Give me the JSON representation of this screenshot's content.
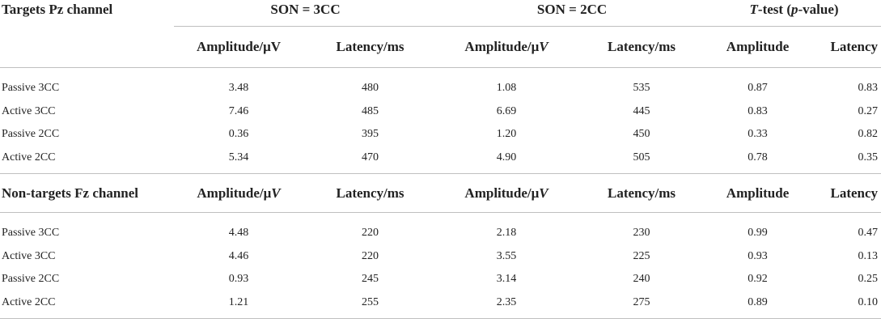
{
  "table": {
    "corner_label": "Targets Pz channel",
    "groups": [
      {
        "label": "SON = 3CC"
      },
      {
        "label": "SON = 2CC"
      },
      {
        "label_italic": "T",
        "label_rest": "-test (",
        "label_italic2": "p",
        "label_end": "-value)"
      }
    ],
    "sub_headers": {
      "amp_3cc_prefix": "Amplitude/μ",
      "amp_3cc_unit": "V",
      "lat_3cc": "Latency/ms",
      "amp_2cc_prefix": "Amplitude/μ",
      "amp_2cc_unit": "V",
      "lat_2cc": "Latency/ms",
      "ttest_amp": "Amplitude",
      "ttest_lat": "Latency"
    },
    "targets_rows": [
      {
        "label": "Passive 3CC",
        "values": [
          "3.48",
          "480",
          "1.08",
          "535",
          "0.87",
          "0.83"
        ]
      },
      {
        "label": "Active 3CC",
        "values": [
          "7.46",
          "485",
          "6.69",
          "445",
          "0.83",
          "0.27"
        ]
      },
      {
        "label": "Passive 2CC",
        "values": [
          "0.36",
          "395",
          "1.20",
          "450",
          "0.33",
          "0.82"
        ]
      },
      {
        "label": "Active 2CC",
        "values": [
          "5.34",
          "470",
          "4.90",
          "505",
          "0.78",
          "0.35"
        ]
      }
    ],
    "nontargets_header": {
      "label": "Non-targets Fz channel",
      "amp_3cc_prefix": "Amplitude/μ",
      "amp_3cc_unit": "V",
      "lat_3cc": "Latency/ms",
      "amp_2cc_prefix": "Amplitude/μ",
      "amp_2cc_unit": "V",
      "lat_2cc": "Latency/ms",
      "ttest_amp": "Amplitude",
      "ttest_lat": "Latency"
    },
    "nontargets_rows": [
      {
        "label": "Passive 3CC",
        "values": [
          "4.48",
          "220",
          "2.18",
          "230",
          "0.99",
          "0.47"
        ]
      },
      {
        "label": "Active 3CC",
        "values": [
          "4.46",
          "220",
          "3.55",
          "225",
          "0.93",
          "0.13"
        ]
      },
      {
        "label": "Passive 2CC",
        "values": [
          "0.93",
          "245",
          "3.14",
          "240",
          "0.92",
          "0.25"
        ]
      },
      {
        "label": "Active 2CC",
        "values": [
          "1.21",
          "255",
          "2.35",
          "275",
          "0.89",
          "0.10"
        ]
      }
    ]
  }
}
